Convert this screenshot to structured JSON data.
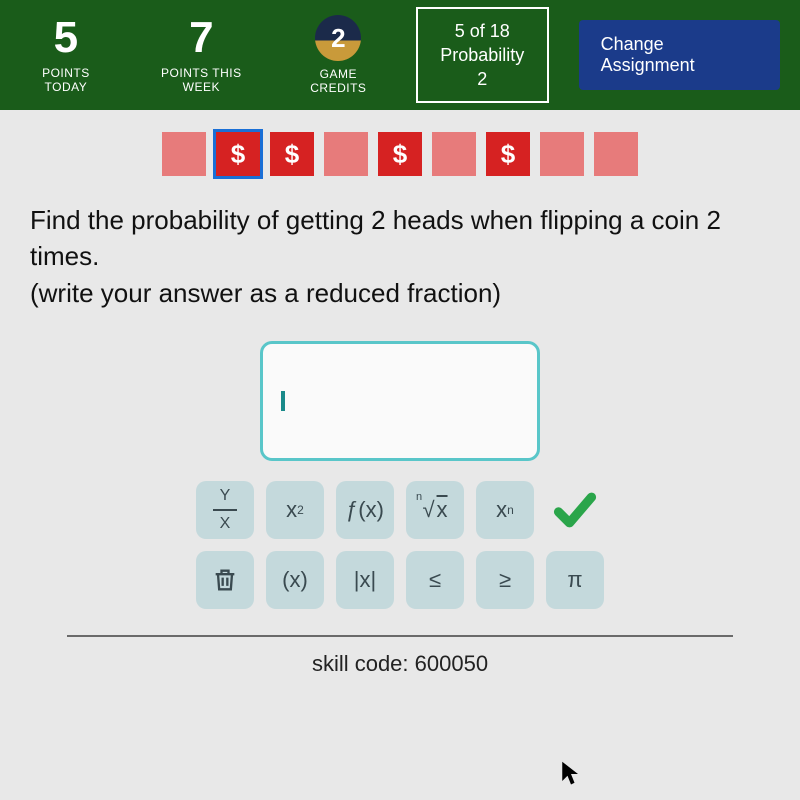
{
  "topbar": {
    "points_today": {
      "value": "5",
      "label": "POINTS TODAY"
    },
    "points_week": {
      "value": "7",
      "label": "POINTS THIS WEEK"
    },
    "game_credits": {
      "value": "2",
      "label": "GAME CREDITS"
    },
    "progress": {
      "count": "5 of 18",
      "topic": "Probability 2"
    },
    "change_label": "Change Assignment"
  },
  "tiles": {
    "items": [
      {
        "cash": false,
        "active": false
      },
      {
        "cash": true,
        "active": true
      },
      {
        "cash": true,
        "active": false
      },
      {
        "cash": false,
        "active": false
      },
      {
        "cash": true,
        "active": false
      },
      {
        "cash": false,
        "active": false
      },
      {
        "cash": true,
        "active": false
      },
      {
        "cash": false,
        "active": false
      },
      {
        "cash": false,
        "active": false
      }
    ],
    "cash_symbol": "$",
    "colors": {
      "plain": "#e77b7b",
      "cash": "#d62222",
      "active_outline": "#1a6fd6"
    }
  },
  "question": {
    "line1": "Find the probability of getting 2 heads when flipping a coin 2 times.",
    "line2": "(write your answer as a reduced fraction)"
  },
  "keypad": {
    "fraction_Y": "Y",
    "fraction_X": "X",
    "power_base": "x",
    "power_exp": "2",
    "func": "ƒ(x)",
    "root_n": "n",
    "root_sym": "√",
    "root_x": "x",
    "sub_base": "x",
    "sub_n": "n",
    "paren": "(x)",
    "abs": "|x|",
    "le": "≤",
    "ge": "≥",
    "pi": "π"
  },
  "skill": {
    "label": "skill code: 600050"
  },
  "colors": {
    "topbar_bg": "#1a5c1a",
    "change_bg": "#1b3b8a",
    "answer_border": "#59c6c9",
    "key_bg": "#c4d9dc",
    "check_green": "#2aa54a"
  }
}
